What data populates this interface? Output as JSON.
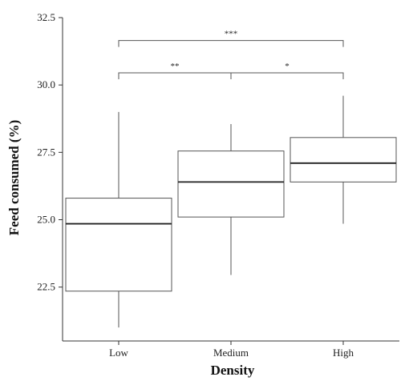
{
  "chart_data": {
    "type": "box",
    "title": "",
    "xlabel": "Density",
    "ylabel": "Feed consumed (%)",
    "categories": [
      "Low",
      "Medium",
      "High"
    ],
    "boxes": [
      {
        "category": "Low",
        "whisker_low": 21.0,
        "q1": 22.35,
        "median": 24.85,
        "q3": 25.8,
        "whisker_high": 29.0
      },
      {
        "category": "Medium",
        "whisker_low": 22.95,
        "q1": 25.1,
        "median": 26.4,
        "q3": 27.55,
        "whisker_high": 28.55
      },
      {
        "category": "High",
        "whisker_low": 24.85,
        "q1": 26.4,
        "median": 27.1,
        "q3": 28.05,
        "whisker_high": 29.6
      }
    ],
    "yticks": [
      "22.5",
      "25.0",
      "27.5",
      "30.0",
      "32.5"
    ],
    "ylim": [
      20.5,
      32.5
    ],
    "grid": false,
    "legend": "none",
    "significance": [
      {
        "from": "Low",
        "to": "Medium",
        "label": "**"
      },
      {
        "from": "Medium",
        "to": "High",
        "label": "*"
      },
      {
        "from": "Low",
        "to": "High",
        "label": "***"
      }
    ],
    "colors": {
      "box_fill": "#ffffff",
      "line": "#555555",
      "median": "#222222"
    }
  }
}
